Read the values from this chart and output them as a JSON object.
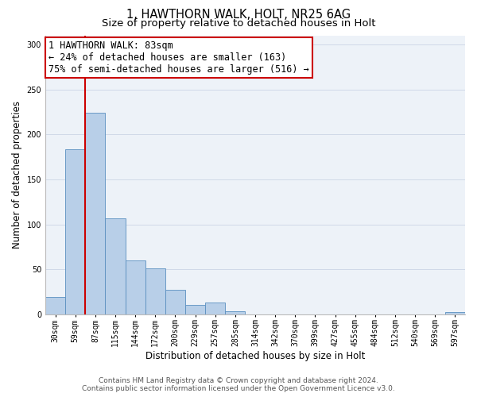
{
  "title_line1": "1, HAWTHORN WALK, HOLT, NR25 6AG",
  "title_line2": "Size of property relative to detached houses in Holt",
  "xlabel": "Distribution of detached houses by size in Holt",
  "ylabel": "Number of detached properties",
  "bar_labels": [
    "30sqm",
    "59sqm",
    "87sqm",
    "115sqm",
    "144sqm",
    "172sqm",
    "200sqm",
    "229sqm",
    "257sqm",
    "285sqm",
    "314sqm",
    "342sqm",
    "370sqm",
    "399sqm",
    "427sqm",
    "455sqm",
    "484sqm",
    "512sqm",
    "540sqm",
    "569sqm",
    "597sqm"
  ],
  "bar_values": [
    19,
    184,
    224,
    107,
    60,
    51,
    27,
    10,
    13,
    3,
    0,
    0,
    0,
    0,
    0,
    0,
    0,
    0,
    0,
    0,
    2
  ],
  "bar_color": "#b8cfe8",
  "bar_edge_color": "#5a8fc0",
  "annotation_title": "1 HAWTHORN WALK: 83sqm",
  "annotation_line2": "← 24% of detached houses are smaller (163)",
  "annotation_line3": "75% of semi-detached houses are larger (516) →",
  "annotation_box_color": "#ffffff",
  "annotation_box_edge_color": "#cc0000",
  "vline_color": "#cc0000",
  "ylim": [
    0,
    310
  ],
  "yticks": [
    0,
    50,
    100,
    150,
    200,
    250,
    300
  ],
  "grid_color": "#d0d9e8",
  "background_color": "#edf2f8",
  "footer_line1": "Contains HM Land Registry data © Crown copyright and database right 2024.",
  "footer_line2": "Contains public sector information licensed under the Open Government Licence v3.0.",
  "title_fontsize": 10.5,
  "subtitle_fontsize": 9.5,
  "xlabel_fontsize": 8.5,
  "ylabel_fontsize": 8.5,
  "tick_fontsize": 7,
  "annotation_fontsize": 8.5,
  "footer_fontsize": 6.5
}
